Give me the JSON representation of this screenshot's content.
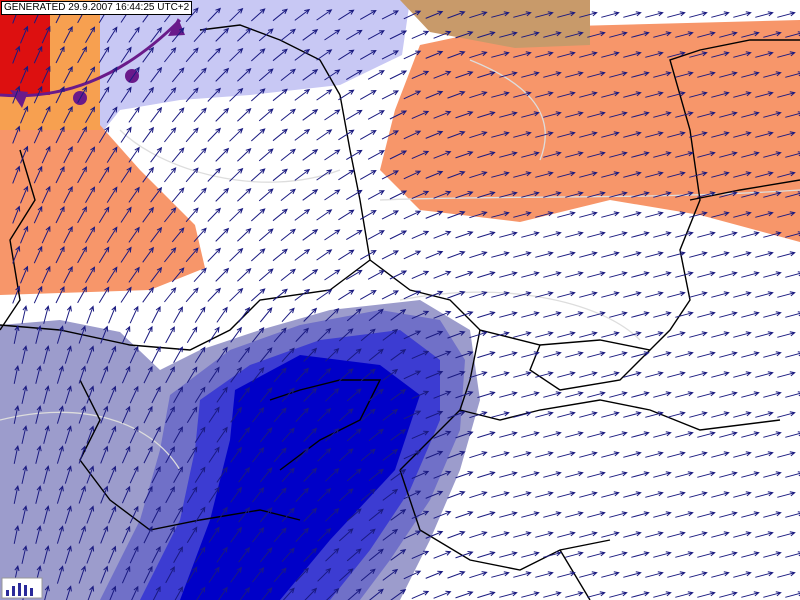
{
  "header": {
    "generated": "GENERATED 29.9.2007 16:44:25 UTC+2"
  }
}
